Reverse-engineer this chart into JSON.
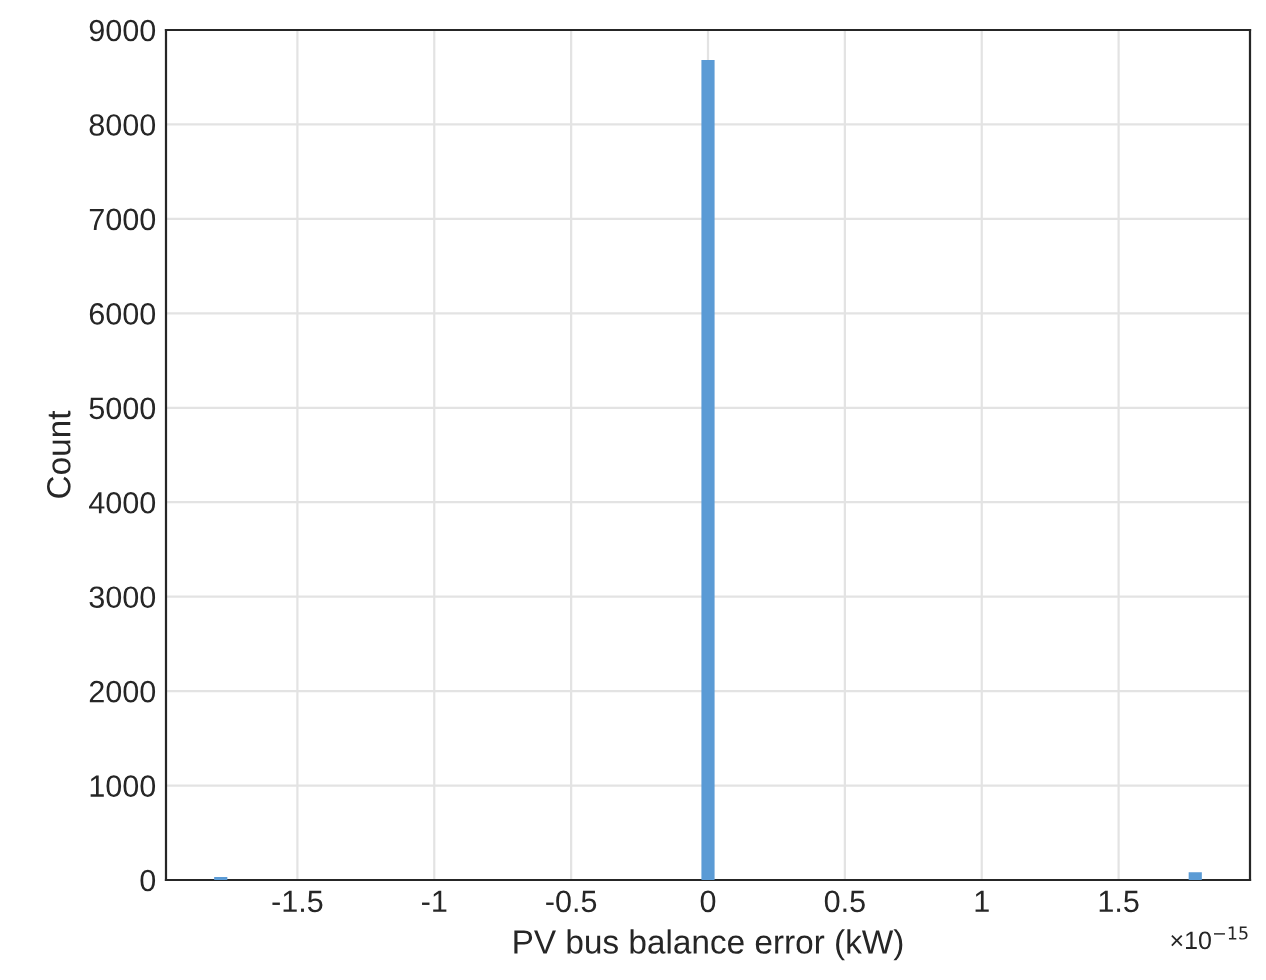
{
  "chart_data": {
    "type": "histogram",
    "xlabel": "PV bus balance error (kW)",
    "ylabel": "Count",
    "bins": [
      -1.8,
      -1.76,
      -0.02,
      0.02,
      1.76,
      1.8
    ],
    "values": [
      20,
      0,
      8670,
      0,
      70
    ],
    "color": "#5b9bd5",
    "xlim": [
      -1.98,
      1.98
    ],
    "xticks": [
      {
        "value": -1.5,
        "label": "-1.5"
      },
      {
        "value": -1,
        "label": "-1"
      },
      {
        "value": -0.5,
        "label": "-0.5"
      },
      0,
      0.5,
      1,
      1.5
    ],
    "ylim": [
      0,
      9000
    ],
    "yticks": [
      0,
      1000,
      2000,
      3000,
      4000,
      5000,
      6000,
      7000,
      8000,
      9000
    ],
    "annotations": [
      "×10$^{−15}$"
    ],
    "grid": true
  }
}
